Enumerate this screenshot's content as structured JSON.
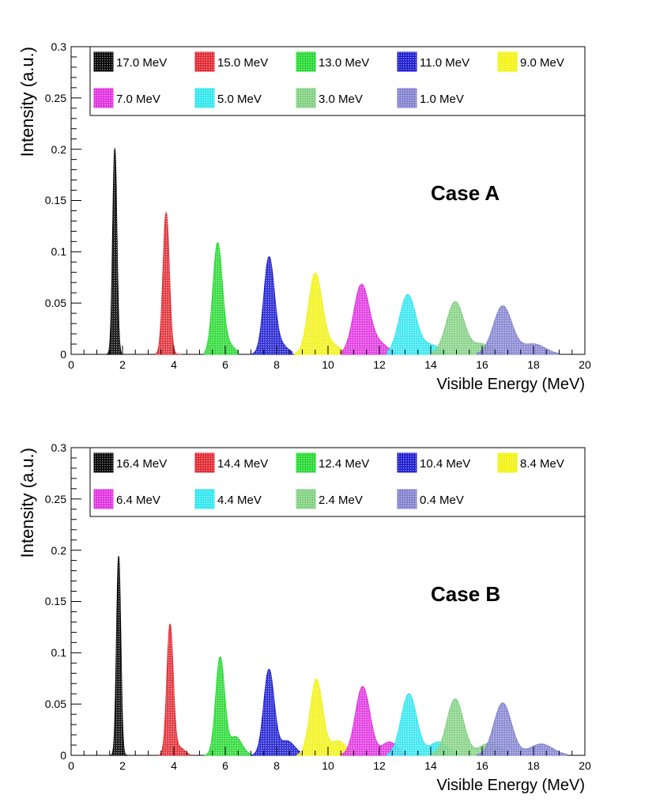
{
  "colors": {
    "black": "#000000",
    "red": "#e0262f",
    "green": "#22d82e",
    "blue": "#1a1ad0",
    "yellow": "#f2f20e",
    "magenta": "#e02ee0",
    "cyan": "#2ee6ee",
    "lightgreen": "#7fcf7f",
    "lightblue": "#7f7fcf"
  },
  "chart_data": [
    {
      "type": "area",
      "annotation": "Case A",
      "xlabel": "Visible Energy (MeV)",
      "ylabel": "Intensity (a.u.)",
      "xlim": [
        0,
        20
      ],
      "ylim": [
        0,
        0.3
      ],
      "xticks": [
        "0",
        "2",
        "4",
        "6",
        "8",
        "10",
        "12",
        "14",
        "16",
        "18",
        "20"
      ],
      "yticks": [
        "0",
        "0.05",
        "0.1",
        "0.15",
        "0.2",
        "0.25",
        "0.3"
      ],
      "legend_position": "top",
      "series": [
        {
          "name": "17.0 MeV",
          "color_key": "black",
          "peak_x": 1.7,
          "peak_y": 0.2,
          "sigma": 0.08,
          "support": [
            1.4,
            2.0
          ],
          "tail": null
        },
        {
          "name": "15.0 MeV",
          "color_key": "red",
          "peak_x": 3.7,
          "peak_y": 0.138,
          "sigma": 0.12,
          "support": [
            3.3,
            4.3
          ],
          "tail": null
        },
        {
          "name": "13.0 MeV",
          "color_key": "green",
          "peak_x": 5.7,
          "peak_y": 0.106,
          "sigma": 0.18,
          "support": [
            5.2,
            6.5
          ],
          "tail": {
            "x": 6.1,
            "y": 0.01,
            "sigma": 0.25
          }
        },
        {
          "name": "11.0 MeV",
          "color_key": "blue",
          "peak_x": 7.7,
          "peak_y": 0.091,
          "sigma": 0.2,
          "support": [
            7.0,
            8.6
          ],
          "tail": {
            "x": 8.1,
            "y": 0.01,
            "sigma": 0.3
          }
        },
        {
          "name": "9.0 MeV",
          "color_key": "yellow",
          "peak_x": 9.5,
          "peak_y": 0.077,
          "sigma": 0.26,
          "support": [
            8.7,
            10.7
          ],
          "tail": {
            "x": 10.1,
            "y": 0.01,
            "sigma": 0.35
          }
        },
        {
          "name": "7.0 MeV",
          "color_key": "magenta",
          "peak_x": 11.3,
          "peak_y": 0.067,
          "sigma": 0.3,
          "support": [
            10.5,
            12.6
          ],
          "tail": {
            "x": 12.0,
            "y": 0.01,
            "sigma": 0.35
          }
        },
        {
          "name": "5.0 MeV",
          "color_key": "cyan",
          "peak_x": 13.1,
          "peak_y": 0.058,
          "sigma": 0.32,
          "support": [
            12.3,
            14.6
          ],
          "tail": {
            "x": 14.0,
            "y": 0.009,
            "sigma": 0.35
          }
        },
        {
          "name": "3.0 MeV",
          "color_key": "lightgreen",
          "peak_x": 14.95,
          "peak_y": 0.051,
          "sigma": 0.34,
          "support": [
            14.0,
            16.8
          ],
          "tail": {
            "x": 16.0,
            "y": 0.01,
            "sigma": 0.4
          }
        },
        {
          "name": "1.0 MeV",
          "color_key": "lightblue",
          "peak_x": 16.8,
          "peak_y": 0.047,
          "sigma": 0.36,
          "support": [
            15.8,
            19.0
          ],
          "tail": {
            "x": 18.0,
            "y": 0.01,
            "sigma": 0.45
          }
        }
      ]
    },
    {
      "type": "area",
      "annotation": "Case B",
      "xlabel": "Visible Energy (MeV)",
      "ylabel": "Intensity (a.u.)",
      "xlim": [
        0,
        20
      ],
      "ylim": [
        0,
        0.3
      ],
      "xticks": [
        "0",
        "2",
        "4",
        "6",
        "8",
        "10",
        "12",
        "14",
        "16",
        "18",
        "20"
      ],
      "yticks": [
        "0",
        "0.05",
        "0.1",
        "0.15",
        "0.2",
        "0.25",
        "0.3"
      ],
      "legend_position": "top",
      "series": [
        {
          "name": "16.4 MeV",
          "color_key": "black",
          "peak_x": 1.85,
          "peak_y": 0.194,
          "sigma": 0.08,
          "support": [
            1.5,
            2.2
          ],
          "tail": null
        },
        {
          "name": "14.4 MeV",
          "color_key": "red",
          "peak_x": 3.85,
          "peak_y": 0.126,
          "sigma": 0.12,
          "support": [
            3.4,
            4.6
          ],
          "tail": {
            "x": 4.2,
            "y": 0.008,
            "sigma": 0.2
          }
        },
        {
          "name": "12.4 MeV",
          "color_key": "green",
          "peak_x": 5.8,
          "peak_y": 0.095,
          "sigma": 0.17,
          "support": [
            5.2,
            7.0
          ],
          "tail": {
            "x": 6.4,
            "y": 0.018,
            "sigma": 0.25
          }
        },
        {
          "name": "10.4 MeV",
          "color_key": "blue",
          "peak_x": 7.7,
          "peak_y": 0.083,
          "sigma": 0.2,
          "support": [
            7.0,
            9.0
          ],
          "tail": {
            "x": 8.4,
            "y": 0.014,
            "sigma": 0.3
          }
        },
        {
          "name": "8.4 MeV",
          "color_key": "yellow",
          "peak_x": 9.55,
          "peak_y": 0.074,
          "sigma": 0.24,
          "support": [
            8.8,
            11.0
          ],
          "tail": {
            "x": 10.4,
            "y": 0.014,
            "sigma": 0.3
          }
        },
        {
          "name": "6.4 MeV",
          "color_key": "magenta",
          "peak_x": 11.35,
          "peak_y": 0.067,
          "sigma": 0.28,
          "support": [
            10.5,
            13.0
          ],
          "tail": {
            "x": 12.4,
            "y": 0.013,
            "sigma": 0.3
          }
        },
        {
          "name": "4.4 MeV",
          "color_key": "cyan",
          "peak_x": 13.15,
          "peak_y": 0.06,
          "sigma": 0.3,
          "support": [
            12.3,
            15.0
          ],
          "tail": {
            "x": 14.3,
            "y": 0.013,
            "sigma": 0.35
          }
        },
        {
          "name": "2.4 MeV",
          "color_key": "lightgreen",
          "peak_x": 14.95,
          "peak_y": 0.055,
          "sigma": 0.32,
          "support": [
            14.0,
            17.0
          ],
          "tail": {
            "x": 16.3,
            "y": 0.012,
            "sigma": 0.4
          }
        },
        {
          "name": "0.4 MeV",
          "color_key": "lightblue",
          "peak_x": 16.8,
          "peak_y": 0.051,
          "sigma": 0.34,
          "support": [
            15.8,
            19.3
          ],
          "tail": {
            "x": 18.3,
            "y": 0.011,
            "sigma": 0.45
          }
        }
      ]
    }
  ]
}
